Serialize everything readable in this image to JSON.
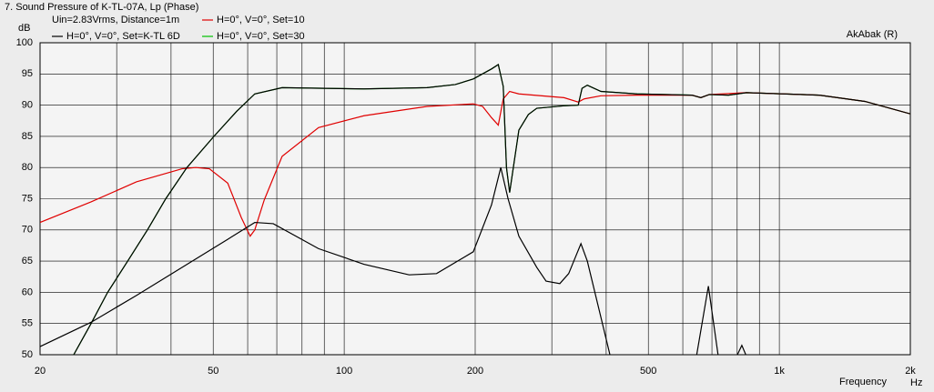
{
  "chart_data": {
    "type": "line",
    "title": "7. Sound Pressure of K-TL-07A, Lp (Phase)",
    "subtitle": "Uin=2.83Vrms, Distance=1m",
    "watermark": "AkAbak (R)",
    "ylabel": "dB",
    "xlabel": "Frequency",
    "xunit": "Hz",
    "xscale": "log",
    "xlim": [
      20,
      2000
    ],
    "ylim": [
      50,
      100
    ],
    "xticks": [
      20,
      50,
      100,
      200,
      500,
      {
        "value": 1000,
        "label": "1k"
      },
      {
        "value": 2000,
        "label": "2k"
      }
    ],
    "xminor": [
      30,
      40,
      60,
      70,
      80,
      90,
      300,
      400,
      600,
      700,
      800,
      900
    ],
    "yticks": [
      50,
      55,
      60,
      65,
      70,
      75,
      80,
      85,
      90,
      95,
      100
    ],
    "grid": true,
    "series": [
      {
        "name": "H=0°, V=0°, Set=30",
        "color": "#00c000",
        "x": [
          20,
          23.9,
          26.2,
          28.6,
          31.8,
          35.3,
          38.9,
          43.5,
          50.2,
          56.6,
          62.3,
          72,
          111,
          155,
          180,
          198,
          218,
          226,
          232,
          236,
          240,
          252,
          265,
          277,
          320,
          345,
          352,
          362,
          389,
          471,
          630,
          660,
          690,
          764,
          840,
          1236,
          1572,
          2000
        ],
        "values": [
          46,
          50,
          55,
          60,
          65,
          70,
          75,
          80,
          85,
          89,
          91.8,
          92.8,
          92.6,
          92.8,
          93.3,
          94.2,
          95.8,
          96.5,
          93,
          80,
          76,
          86,
          88.5,
          89.5,
          89.9,
          90,
          92.7,
          93.2,
          92.2,
          91.8,
          91.6,
          91.2,
          91.7,
          91.6,
          92,
          91.6,
          90.6,
          88.6
        ]
      },
      {
        "name": "H=0°, V=0°, Set=10",
        "color": "#e00000",
        "x": [
          20,
          26.2,
          33.3,
          42.4,
          45.6,
          49,
          54,
          58,
          60.8,
          62.3,
          65.5,
          72,
          87.3,
          111,
          155,
          198,
          208,
          218,
          226,
          232,
          240,
          252,
          320,
          345,
          356,
          389,
          471,
          630,
          660,
          690,
          840,
          1236,
          1572,
          2000
        ],
        "values": [
          71.2,
          74.5,
          77.7,
          79.8,
          80,
          79.8,
          77.5,
          72,
          69,
          70,
          74.8,
          81.8,
          86.4,
          88.3,
          89.8,
          90.2,
          89.8,
          88,
          86.8,
          91,
          92.2,
          91.8,
          91.2,
          90.5,
          91,
          91.5,
          91.6,
          91.6,
          91.2,
          91.7,
          92,
          91.6,
          90.6,
          88.6
        ]
      },
      {
        "name": "H=0°, V=0°, Set=K-TL 6D",
        "color": "#000000",
        "x": [
          20,
          23.9,
          26.2,
          28.6,
          31.8,
          35.3,
          38.9,
          43.5,
          50.2,
          56.6,
          62.3,
          72,
          111,
          155,
          180,
          198,
          218,
          226,
          232,
          236,
          240,
          252,
          265,
          277,
          320,
          345,
          352,
          362,
          389,
          471,
          630,
          660,
          690,
          764,
          840,
          1236,
          1572,
          2000
        ],
        "values": [
          46,
          50,
          55,
          60,
          65,
          70,
          75,
          80,
          85,
          89,
          91.8,
          92.8,
          92.6,
          92.8,
          93.3,
          94.2,
          95.8,
          96.5,
          93,
          80,
          76,
          86,
          88.5,
          89.5,
          89.9,
          90,
          92.7,
          93.2,
          92.2,
          91.8,
          91.6,
          91.2,
          91.7,
          91.6,
          92,
          91.6,
          90.6,
          88.6
        ]
      },
      {
        "color": "#000000",
        "x": [
          20,
          26.2,
          33.3,
          42.4,
          54,
          62.3,
          68.7,
          87.3,
          111,
          141,
          163,
          198,
          218,
          229,
          238,
          252,
          277,
          291,
          313,
          328,
          350,
          362,
          389,
          408,
          471,
          630,
          644,
          687,
          728,
          764,
          820,
          861,
          1236
        ],
        "values": [
          51.3,
          55.2,
          59.5,
          64,
          68.5,
          71.2,
          71,
          67,
          64.5,
          62.8,
          63,
          66.5,
          74,
          80,
          75,
          69,
          64,
          61.8,
          61.4,
          63,
          67.8,
          65,
          56,
          50,
          45,
          47,
          49.5,
          61,
          48.5,
          47,
          51.5,
          48,
          45
        ]
      }
    ]
  }
}
